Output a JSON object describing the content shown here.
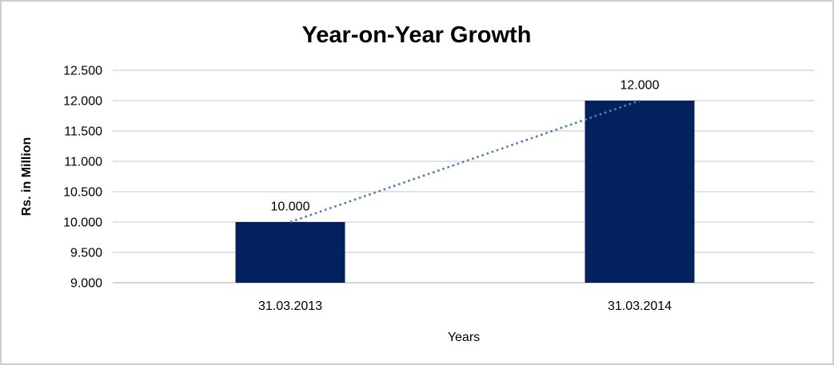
{
  "frame": {
    "background": "#FFFFFF",
    "border_color": "#CDCDCD"
  },
  "chart_data": {
    "type": "bar",
    "title": "Year-on-Year Growth",
    "xlabel": "Years",
    "ylabel": "Rs. in Million",
    "categories": [
      "31.03.2013",
      "31.03.2014"
    ],
    "values": [
      10000,
      12000
    ],
    "data_labels": [
      "10.000",
      "12.000"
    ],
    "y_ticks": [
      {
        "value": 9000,
        "label": "9.000"
      },
      {
        "value": 9500,
        "label": "9.500"
      },
      {
        "value": 10000,
        "label": "10.000"
      },
      {
        "value": 10500,
        "label": "10.500"
      },
      {
        "value": 11000,
        "label": "11.000"
      },
      {
        "value": 11500,
        "label": "11.500"
      },
      {
        "value": 12000,
        "label": "12.000"
      },
      {
        "value": 12500,
        "label": "12.500"
      }
    ],
    "ylim": [
      9000,
      12500
    ],
    "grid": true,
    "legend": false,
    "trendline": {
      "style": "dotted",
      "connects": "bar-tops"
    },
    "colors": {
      "bar": "#03215F",
      "trendline": "#4A7EBB",
      "gridline": "#D9D9D9",
      "axis_line": "#C6C6C6",
      "text": "#000000"
    }
  }
}
